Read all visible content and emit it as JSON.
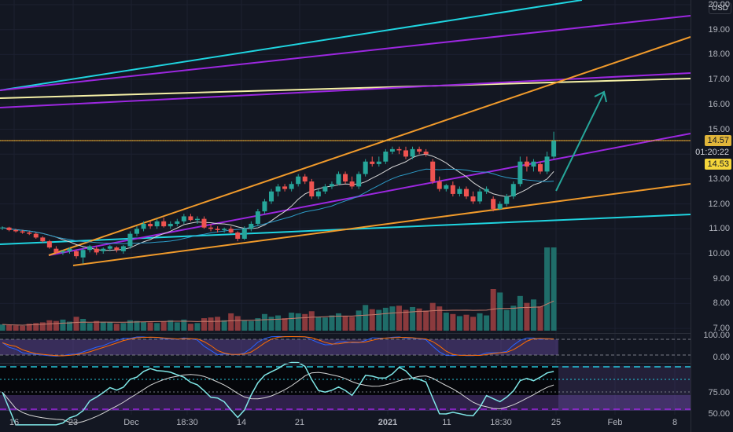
{
  "app": {
    "currency": "USD",
    "countdown": "01:20:22"
  },
  "price_axis": {
    "ticks": [
      "20.00",
      "19.00",
      "18.00",
      "17.00",
      "16.00",
      "15.00",
      "14.00",
      "13.00",
      "12.00",
      "11.00",
      "10.00",
      "9.00",
      "8.00",
      "7.00"
    ]
  },
  "osc1_axis": {
    "ticks": [
      "100.00",
      "0.00"
    ]
  },
  "osc2_axis": {
    "ticks": [
      "75.00",
      "50.00"
    ]
  },
  "time_axis": {
    "ticks": [
      {
        "label": "16",
        "bold": false
      },
      {
        "label": "23",
        "bold": false
      },
      {
        "label": "Dec",
        "bold": false
      },
      {
        "label": "18:30",
        "bold": false
      },
      {
        "label": "14",
        "bold": false
      },
      {
        "label": "21",
        "bold": false
      },
      {
        "label": "2021",
        "bold": true
      },
      {
        "label": "11",
        "bold": false
      },
      {
        "label": "18:30",
        "bold": false
      },
      {
        "label": "25",
        "bold": false
      },
      {
        "label": "Feb",
        "bold": false
      },
      {
        "label": "8",
        "bold": false
      }
    ]
  },
  "badges": {
    "horizontal_level": {
      "label": "14.57",
      "color": "#e0b53a"
    },
    "last_price": {
      "label": "14.53",
      "color": "#f5d53b"
    }
  },
  "colors": {
    "up": "#26a69a",
    "down": "#ef5350",
    "cyan": "#1fd4e0",
    "purple": "#9c27e0",
    "orange": "#f09a2b",
    "yellow": "#f5f0a6"
  },
  "chart_data": {
    "type": "candlestick",
    "y_range": [
      6.9,
      20.2
    ],
    "candles": [
      [
        11.05,
        11.1,
        10.95,
        11.05
      ],
      [
        11.05,
        11.08,
        10.9,
        10.95
      ],
      [
        10.95,
        11.0,
        10.85,
        10.9
      ],
      [
        10.9,
        10.95,
        10.8,
        10.85
      ],
      [
        10.85,
        10.9,
        10.75,
        10.8
      ],
      [
        10.8,
        10.85,
        10.6,
        10.65
      ],
      [
        10.65,
        10.7,
        10.45,
        10.5
      ],
      [
        10.5,
        10.55,
        10.2,
        10.25
      ],
      [
        10.2,
        10.3,
        10.0,
        10.05
      ],
      [
        10.05,
        10.15,
        9.95,
        10.1
      ],
      [
        10.1,
        10.25,
        10.0,
        10.2
      ],
      [
        10.1,
        10.15,
        9.8,
        9.9
      ],
      [
        9.85,
        10.25,
        9.6,
        10.15
      ],
      [
        10.15,
        10.35,
        10.05,
        10.3
      ],
      [
        10.2,
        10.3,
        9.95,
        10.05
      ],
      [
        10.1,
        10.25,
        10.0,
        10.2
      ],
      [
        10.2,
        10.35,
        10.1,
        10.3
      ],
      [
        10.25,
        10.3,
        10.05,
        10.15
      ],
      [
        10.1,
        10.35,
        10.0,
        10.3
      ],
      [
        10.3,
        10.9,
        10.2,
        10.8
      ],
      [
        10.8,
        11.1,
        10.7,
        11.0
      ],
      [
        11.0,
        11.3,
        10.9,
        11.2
      ],
      [
        11.2,
        11.3,
        11.0,
        11.1
      ],
      [
        11.1,
        11.4,
        11.0,
        11.3
      ],
      [
        11.3,
        11.45,
        11.05,
        11.1
      ],
      [
        11.1,
        11.3,
        11.0,
        11.2
      ],
      [
        11.2,
        11.4,
        11.1,
        11.3
      ],
      [
        11.3,
        11.6,
        11.2,
        11.5
      ],
      [
        11.5,
        11.6,
        11.3,
        11.35
      ],
      [
        11.35,
        11.5,
        11.2,
        11.4
      ],
      [
        11.4,
        11.5,
        11.0,
        11.05
      ],
      [
        11.05,
        11.2,
        10.9,
        11.0
      ],
      [
        11.0,
        11.1,
        10.85,
        10.95
      ],
      [
        10.95,
        11.05,
        10.85,
        11.0
      ],
      [
        11.0,
        11.1,
        10.8,
        10.85
      ],
      [
        10.85,
        10.9,
        10.5,
        10.6
      ],
      [
        10.6,
        11.1,
        10.55,
        11.0
      ],
      [
        11.0,
        11.3,
        10.9,
        11.2
      ],
      [
        11.2,
        11.8,
        11.1,
        11.7
      ],
      [
        11.7,
        12.2,
        11.6,
        12.1
      ],
      [
        12.1,
        12.6,
        12.0,
        12.5
      ],
      [
        12.5,
        12.8,
        12.3,
        12.7
      ],
      [
        12.7,
        12.8,
        12.5,
        12.6
      ],
      [
        12.6,
        12.9,
        12.5,
        12.8
      ],
      [
        12.8,
        13.2,
        12.7,
        13.1
      ],
      [
        13.1,
        13.2,
        12.8,
        12.9
      ],
      [
        12.9,
        13.0,
        12.2,
        12.3
      ],
      [
        12.3,
        12.6,
        12.2,
        12.5
      ],
      [
        12.5,
        12.8,
        12.4,
        12.7
      ],
      [
        12.7,
        12.9,
        12.6,
        12.8
      ],
      [
        12.8,
        13.3,
        12.75,
        13.2
      ],
      [
        13.2,
        13.3,
        12.8,
        12.9
      ],
      [
        12.9,
        13.1,
        12.6,
        12.7
      ],
      [
        12.7,
        13.3,
        12.6,
        13.2
      ],
      [
        13.2,
        13.8,
        13.1,
        13.7
      ],
      [
        13.7,
        13.9,
        13.5,
        13.6
      ],
      [
        13.6,
        13.9,
        13.5,
        13.7
      ],
      [
        13.7,
        14.2,
        13.6,
        14.1
      ],
      [
        14.1,
        14.3,
        14.0,
        14.2
      ],
      [
        14.2,
        14.3,
        14.0,
        14.15
      ],
      [
        14.15,
        14.3,
        13.8,
        13.9
      ],
      [
        13.9,
        14.3,
        13.8,
        14.2
      ],
      [
        14.2,
        14.3,
        14.0,
        14.1
      ],
      [
        14.1,
        14.2,
        13.9,
        14.0
      ],
      [
        13.7,
        13.8,
        12.8,
        12.9
      ],
      [
        12.9,
        13.1,
        12.5,
        12.6
      ],
      [
        12.6,
        12.8,
        12.5,
        12.75
      ],
      [
        12.75,
        12.9,
        12.3,
        12.4
      ],
      [
        12.4,
        12.7,
        12.3,
        12.6
      ],
      [
        12.6,
        12.7,
        12.2,
        12.3
      ],
      [
        12.3,
        12.5,
        12.0,
        12.1
      ],
      [
        12.1,
        12.6,
        12.0,
        12.5
      ],
      [
        12.5,
        12.7,
        12.4,
        12.6
      ],
      [
        12.2,
        12.3,
        11.7,
        11.8
      ],
      [
        11.8,
        12.1,
        11.75,
        12.0
      ],
      [
        12.0,
        12.4,
        11.9,
        12.3
      ],
      [
        12.3,
        12.9,
        12.2,
        12.8
      ],
      [
        12.8,
        13.9,
        12.7,
        13.7
      ],
      [
        13.7,
        13.9,
        13.3,
        13.5
      ],
      [
        13.5,
        13.8,
        13.3,
        13.7
      ],
      [
        13.6,
        13.7,
        13.2,
        13.3
      ],
      [
        13.3,
        14.1,
        13.2,
        13.9
      ],
      [
        13.9,
        14.9,
        13.8,
        14.53
      ]
    ],
    "volumes": [
      18,
      16,
      15,
      14,
      20,
      22,
      24,
      30,
      28,
      32,
      26,
      40,
      34,
      22,
      28,
      26,
      24,
      20,
      22,
      30,
      28,
      26,
      24,
      22,
      26,
      30,
      24,
      32,
      20,
      22,
      36,
      38,
      40,
      30,
      50,
      42,
      30,
      28,
      36,
      48,
      40,
      44,
      36,
      52,
      50,
      48,
      56,
      40,
      38,
      44,
      50,
      42,
      40,
      58,
      74,
      62,
      60,
      66,
      70,
      72,
      60,
      68,
      64,
      58,
      80,
      70,
      52,
      48,
      42,
      46,
      40,
      50,
      44,
      120,
      110,
      60,
      72,
      100,
      80,
      90,
      70,
      240,
      240
    ]
  }
}
